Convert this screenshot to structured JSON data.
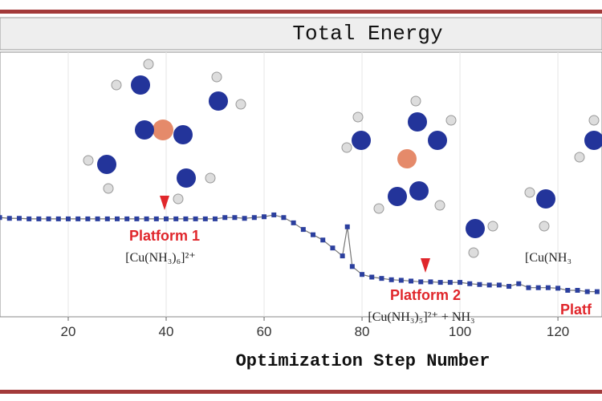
{
  "chart_data": {
    "type": "line",
    "title": "Total Energy",
    "x_label": "Optimization Step Number",
    "x": [
      6,
      8,
      10,
      12,
      14,
      16,
      18,
      20,
      22,
      24,
      26,
      28,
      30,
      32,
      34,
      36,
      38,
      40,
      42,
      44,
      46,
      48,
      50,
      52,
      54,
      56,
      58,
      60,
      62,
      64,
      66,
      68,
      70,
      72,
      74,
      76,
      77,
      78,
      80,
      82,
      84,
      86,
      88,
      90,
      92,
      94,
      96,
      98,
      100,
      102,
      104,
      106,
      108,
      110,
      112,
      114,
      116,
      118,
      120,
      122,
      124,
      126,
      128
    ],
    "series": [
      {
        "name": "Total Energy",
        "color": "#2b3f9e",
        "values": [
          3.75,
          3.72,
          3.72,
          3.7,
          3.7,
          3.7,
          3.7,
          3.7,
          3.7,
          3.7,
          3.7,
          3.7,
          3.7,
          3.7,
          3.7,
          3.7,
          3.7,
          3.7,
          3.7,
          3.7,
          3.7,
          3.7,
          3.7,
          3.75,
          3.75,
          3.72,
          3.75,
          3.78,
          3.85,
          3.75,
          3.55,
          3.3,
          3.1,
          2.9,
          2.6,
          2.3,
          3.4,
          1.9,
          1.6,
          1.5,
          1.45,
          1.4,
          1.38,
          1.35,
          1.32,
          1.32,
          1.3,
          1.3,
          1.3,
          1.25,
          1.22,
          1.2,
          1.2,
          1.15,
          1.25,
          1.1,
          1.1,
          1.1,
          1.08,
          1.0,
          1.0,
          0.95,
          0.95
        ]
      }
    ],
    "xlim": [
      6.07,
      129
    ],
    "xticks": [
      20,
      40,
      60,
      80,
      100,
      120
    ],
    "ylim": [
      0,
      10
    ],
    "grid": true,
    "annotations": [
      {
        "label": "Platform 1",
        "formula": "[Cu(NH₃)₆]²⁺"
      },
      {
        "label": "Platform 2",
        "formula": "[Cu(NH₃)₅]²⁺ + NH₃"
      },
      {
        "label": "Platf",
        "formula": "[Cu(NH₃"
      }
    ]
  }
}
